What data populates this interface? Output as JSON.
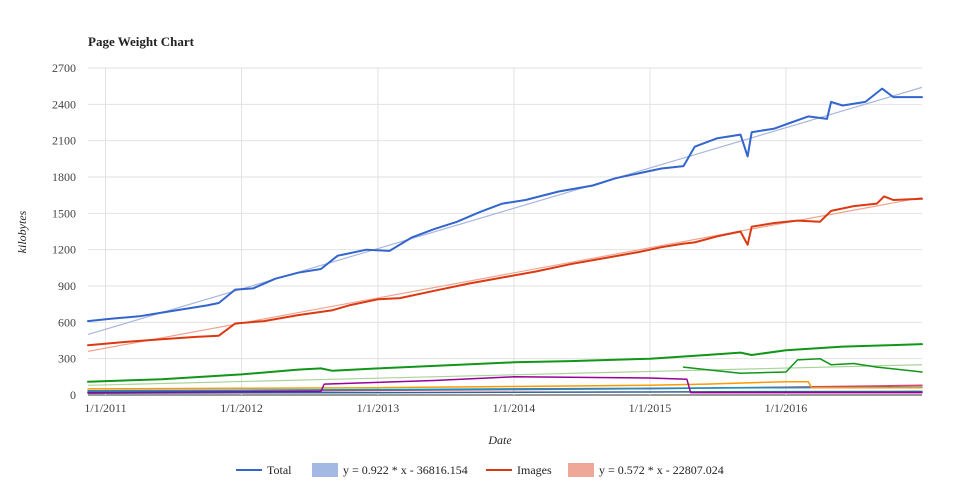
{
  "chart_data": {
    "type": "line",
    "title": "Page Weight Chart",
    "xlabel": "Date",
    "ylabel": "kilobytes",
    "ylim": [
      0,
      2700
    ],
    "yticks": [
      0,
      300,
      600,
      900,
      1200,
      1500,
      1800,
      2100,
      2400,
      2700
    ],
    "xlim": [
      "2010-11-15",
      "2016-12-31"
    ],
    "xticks": [
      {
        "label": "1/1/2011",
        "date": "2011-01-01"
      },
      {
        "label": "1/1/2012",
        "date": "2012-01-01"
      },
      {
        "label": "1/1/2013",
        "date": "2013-01-01"
      },
      {
        "label": "1/1/2014",
        "date": "2014-01-01"
      },
      {
        "label": "1/1/2015",
        "date": "2015-01-01"
      },
      {
        "label": "1/1/2016",
        "date": "2016-01-01"
      }
    ],
    "grid": true,
    "legend_position": "bottom",
    "legend": [
      {
        "label": "Total",
        "kind": "line",
        "color": "#3366cc"
      },
      {
        "label": "y = 0.922 * x - 36816.154",
        "kind": "box",
        "color": "#a3b9e3"
      },
      {
        "label": "Images",
        "kind": "line",
        "color": "#dc3912"
      },
      {
        "label": "y = 0.572 * x - 22807.024",
        "kind": "box",
        "color": "#efa798"
      }
    ],
    "trendlines": [
      {
        "of": "Total",
        "color": "#a9b6dd",
        "x": [
          "2010-11-15",
          "2016-12-31"
        ],
        "y": [
          500,
          2540
        ]
      },
      {
        "of": "Images",
        "color": "#eea58f",
        "x": [
          "2010-11-15",
          "2016-12-31"
        ],
        "y": [
          360,
          1630
        ]
      },
      {
        "of": "Green",
        "color": "#a9d39a",
        "x": [
          "2010-11-15",
          "2016-12-31"
        ],
        "y": [
          80,
          250
        ]
      }
    ],
    "series": [
      {
        "name": "Total",
        "color": "#3366cc",
        "width": 2,
        "x": [
          "2010-11-15",
          "2011-01-15",
          "2011-04-01",
          "2011-06-01",
          "2011-08-01",
          "2011-10-01",
          "2011-11-01",
          "2011-12-15",
          "2012-02-01",
          "2012-04-01",
          "2012-06-01",
          "2012-08-01",
          "2012-09-15",
          "2012-10-01",
          "2012-12-01",
          "2013-02-01",
          "2013-04-01",
          "2013-06-01",
          "2013-08-01",
          "2013-10-01",
          "2013-12-01",
          "2014-02-01",
          "2014-05-01",
          "2014-08-01",
          "2014-10-01",
          "2014-12-01",
          "2015-02-01",
          "2015-04-01",
          "2015-05-01",
          "2015-07-01",
          "2015-09-01",
          "2015-09-20",
          "2015-10-01",
          "2015-12-01",
          "2016-01-15",
          "2016-03-01",
          "2016-04-20",
          "2016-05-01",
          "2016-06-01",
          "2016-08-01",
          "2016-09-15",
          "2016-10-15",
          "2016-12-31"
        ],
        "y": [
          610,
          630,
          650,
          680,
          710,
          740,
          760,
          870,
          880,
          960,
          1010,
          1040,
          1150,
          1160,
          1200,
          1190,
          1300,
          1370,
          1430,
          1510,
          1580,
          1610,
          1680,
          1730,
          1790,
          1830,
          1870,
          1890,
          2050,
          2120,
          2150,
          1970,
          2170,
          2200,
          2250,
          2300,
          2280,
          2420,
          2390,
          2420,
          2530,
          2460,
          2460
        ]
      },
      {
        "name": "Images",
        "color": "#dc3912",
        "width": 2,
        "x": [
          "2010-11-15",
          "2011-03-01",
          "2011-06-01",
          "2011-09-01",
          "2011-11-01",
          "2011-12-15",
          "2012-03-01",
          "2012-06-01",
          "2012-09-01",
          "2012-10-15",
          "2013-01-01",
          "2013-03-01",
          "2013-06-01",
          "2013-09-01",
          "2013-12-01",
          "2014-03-01",
          "2014-06-01",
          "2014-09-01",
          "2014-12-01",
          "2015-02-01",
          "2015-04-01",
          "2015-05-01",
          "2015-07-01",
          "2015-09-01",
          "2015-09-20",
          "2015-10-01",
          "2015-12-01",
          "2016-02-01",
          "2016-04-01",
          "2016-05-01",
          "2016-07-01",
          "2016-09-01",
          "2016-09-20",
          "2016-10-15",
          "2016-12-31"
        ],
        "y": [
          410,
          440,
          460,
          480,
          490,
          590,
          610,
          660,
          700,
          740,
          790,
          800,
          860,
          920,
          970,
          1020,
          1080,
          1130,
          1180,
          1220,
          1250,
          1260,
          1310,
          1350,
          1240,
          1390,
          1420,
          1440,
          1430,
          1520,
          1560,
          1580,
          1640,
          1610,
          1620
        ]
      },
      {
        "name": "",
        "color": "#109618",
        "width": 2,
        "x": [
          "2010-11-15",
          "2011-06-01",
          "2012-01-01",
          "2012-06-01",
          "2012-08-01",
          "2012-09-01",
          "2013-01-01",
          "2013-06-01",
          "2014-01-01",
          "2014-06-01",
          "2015-01-01",
          "2015-06-01",
          "2015-09-01",
          "2015-10-01",
          "2016-01-01",
          "2016-06-01",
          "2016-10-01",
          "2016-12-31"
        ],
        "y": [
          110,
          130,
          170,
          210,
          220,
          200,
          220,
          240,
          270,
          280,
          300,
          330,
          350,
          330,
          370,
          400,
          410,
          420
        ]
      },
      {
        "name": "",
        "color": "#109618",
        "width": 1.5,
        "x": [
          "2015-04-01",
          "2015-06-01",
          "2015-09-01",
          "2016-01-01",
          "2016-02-01",
          "2016-04-01",
          "2016-05-01",
          "2016-07-01",
          "2016-09-01",
          "2016-12-31"
        ],
        "y": [
          230,
          210,
          180,
          190,
          290,
          300,
          250,
          260,
          230,
          190
        ]
      },
      {
        "name": "",
        "color": "#990099",
        "width": 1.5,
        "x": [
          "2010-11-15",
          "2012-08-01",
          "2012-08-10",
          "2013-06-01",
          "2014-01-01",
          "2015-01-01",
          "2015-04-10",
          "2015-04-20",
          "2016-12-31"
        ],
        "y": [
          20,
          30,
          90,
          120,
          150,
          140,
          130,
          20,
          20
        ]
      },
      {
        "name": "",
        "color": "#ff9900",
        "width": 1.5,
        "x": [
          "2010-11-15",
          "2012-01-01",
          "2013-01-01",
          "2014-01-01",
          "2015-01-01",
          "2015-06-01",
          "2016-01-01",
          "2016-03-01",
          "2016-03-10",
          "2016-12-31"
        ],
        "y": [
          50,
          55,
          60,
          70,
          80,
          90,
          110,
          110,
          60,
          60
        ]
      },
      {
        "name": "",
        "color": "#0099c6",
        "width": 1.5,
        "x": [
          "2010-11-15",
          "2012-01-01",
          "2013-01-01",
          "2014-01-01",
          "2015-01-01",
          "2016-01-01",
          "2016-12-31"
        ],
        "y": [
          35,
          40,
          45,
          50,
          55,
          60,
          65
        ]
      },
      {
        "name": "",
        "color": "#dd4477",
        "width": 1.5,
        "x": [
          "2010-11-15",
          "2012-01-01",
          "2013-01-01",
          "2014-01-01",
          "2015-01-01",
          "2016-01-01",
          "2016-12-31"
        ],
        "y": [
          25,
          30,
          38,
          45,
          52,
          65,
          80
        ]
      },
      {
        "name": "",
        "color": "#316395",
        "width": 1.5,
        "x": [
          "2010-11-15",
          "2012-01-01",
          "2013-01-01",
          "2014-01-01",
          "2015-01-01",
          "2016-01-01",
          "2016-12-31"
        ],
        "y": [
          15,
          18,
          20,
          22,
          25,
          28,
          30
        ]
      }
    ]
  }
}
